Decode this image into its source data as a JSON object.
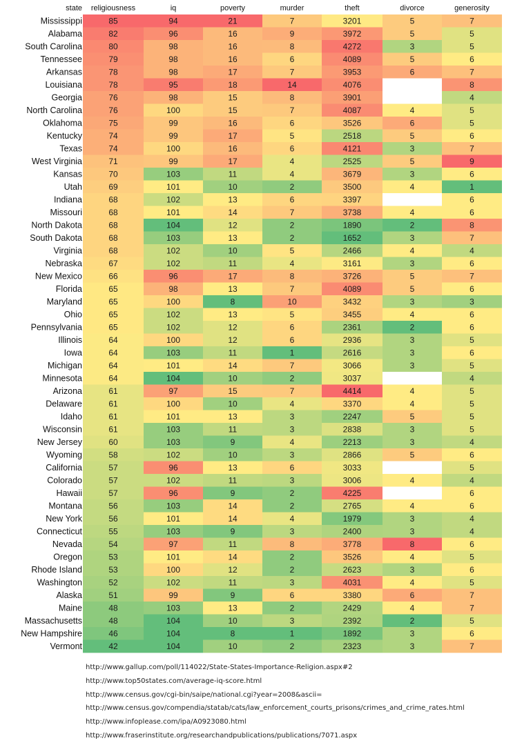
{
  "chart_data": {
    "type": "heatmap",
    "title": "",
    "state_label": "state",
    "columns": [
      {
        "key": "religiousness",
        "label": "religiousness",
        "higher_is_worse": true
      },
      {
        "key": "iq",
        "label": "iq",
        "higher_is_worse": false
      },
      {
        "key": "poverty",
        "label": "poverty",
        "higher_is_worse": true
      },
      {
        "key": "murder",
        "label": "murder",
        "higher_is_worse": true
      },
      {
        "key": "theft",
        "label": "theft",
        "higher_is_worse": true
      },
      {
        "key": "divorce",
        "label": "divorce",
        "higher_is_worse": true
      },
      {
        "key": "generosity",
        "label": "generosity",
        "higher_is_worse": true
      }
    ],
    "color_scale": {
      "good": "#63be7b",
      "mid": "#ffeb84",
      "bad": "#f8696b",
      "missing": "#ffffff"
    },
    "rows": [
      {
        "state": "Mississippi",
        "values": [
          85,
          94,
          21,
          7,
          3201,
          5,
          7
        ]
      },
      {
        "state": "Alabama",
        "values": [
          82,
          96,
          16,
          9,
          3972,
          5,
          5
        ]
      },
      {
        "state": "South Carolina",
        "values": [
          80,
          98,
          16,
          8,
          4272,
          3,
          5
        ]
      },
      {
        "state": "Tennessee",
        "values": [
          79,
          98,
          16,
          6,
          4089,
          5,
          6
        ]
      },
      {
        "state": "Arkansas",
        "values": [
          78,
          98,
          17,
          7,
          3953,
          6,
          7
        ]
      },
      {
        "state": "Louisiana",
        "values": [
          78,
          95,
          18,
          14,
          4076,
          null,
          8
        ]
      },
      {
        "state": "Georgia",
        "values": [
          76,
          98,
          15,
          8,
          3901,
          null,
          4
        ]
      },
      {
        "state": "North Carolina",
        "values": [
          76,
          100,
          15,
          7,
          4087,
          4,
          5
        ]
      },
      {
        "state": "Oklahoma",
        "values": [
          75,
          99,
          16,
          6,
          3526,
          6,
          5
        ]
      },
      {
        "state": "Kentucky",
        "values": [
          74,
          99,
          17,
          5,
          2518,
          5,
          6
        ]
      },
      {
        "state": "Texas",
        "values": [
          74,
          100,
          16,
          6,
          4121,
          3,
          7
        ]
      },
      {
        "state": "West Virginia",
        "values": [
          71,
          99,
          17,
          4,
          2525,
          5,
          9
        ]
      },
      {
        "state": "Kansas",
        "values": [
          70,
          103,
          11,
          4,
          3679,
          3,
          6
        ]
      },
      {
        "state": "Utah",
        "values": [
          69,
          101,
          10,
          2,
          3500,
          4,
          1
        ]
      },
      {
        "state": "Indiana",
        "values": [
          68,
          102,
          13,
          6,
          3397,
          null,
          6
        ]
      },
      {
        "state": "Missouri",
        "values": [
          68,
          101,
          14,
          7,
          3738,
          4,
          6
        ]
      },
      {
        "state": "North Dakota",
        "values": [
          68,
          104,
          12,
          2,
          1890,
          2,
          8
        ]
      },
      {
        "state": "South Dakota",
        "values": [
          68,
          103,
          13,
          2,
          1652,
          3,
          7
        ]
      },
      {
        "state": "Virginia",
        "values": [
          68,
          102,
          10,
          5,
          2466,
          4,
          4
        ]
      },
      {
        "state": "Nebraska",
        "values": [
          67,
          102,
          11,
          4,
          3161,
          3,
          6
        ]
      },
      {
        "state": "New Mexico",
        "values": [
          66,
          96,
          17,
          8,
          3726,
          5,
          7
        ]
      },
      {
        "state": "Florida",
        "values": [
          65,
          98,
          13,
          7,
          4089,
          5,
          6
        ]
      },
      {
        "state": "Maryland",
        "values": [
          65,
          100,
          8,
          10,
          3432,
          3,
          3
        ]
      },
      {
        "state": "Ohio",
        "values": [
          65,
          102,
          13,
          5,
          3455,
          4,
          6
        ]
      },
      {
        "state": "Pennsylvania",
        "values": [
          65,
          102,
          12,
          6,
          2361,
          2,
          6
        ]
      },
      {
        "state": "Illinois",
        "values": [
          64,
          100,
          12,
          6,
          2936,
          3,
          5
        ]
      },
      {
        "state": "Iowa",
        "values": [
          64,
          103,
          11,
          1,
          2616,
          3,
          6
        ]
      },
      {
        "state": "Michigan",
        "values": [
          64,
          101,
          14,
          7,
          3066,
          3,
          5
        ]
      },
      {
        "state": "Minnesota",
        "values": [
          64,
          104,
          10,
          2,
          3037,
          null,
          4
        ]
      },
      {
        "state": "Arizona",
        "values": [
          61,
          97,
          15,
          7,
          4414,
          4,
          5
        ]
      },
      {
        "state": "Delaware",
        "values": [
          61,
          100,
          10,
          4,
          3370,
          4,
          5
        ]
      },
      {
        "state": "Idaho",
        "values": [
          61,
          101,
          13,
          3,
          2247,
          5,
          5
        ]
      },
      {
        "state": "Wisconsin",
        "values": [
          61,
          103,
          11,
          3,
          2838,
          3,
          5
        ]
      },
      {
        "state": "New Jersey",
        "values": [
          60,
          103,
          9,
          4,
          2213,
          3,
          4
        ]
      },
      {
        "state": "Wyoming",
        "values": [
          58,
          102,
          10,
          3,
          2866,
          5,
          6
        ]
      },
      {
        "state": "California",
        "values": [
          57,
          96,
          13,
          6,
          3033,
          null,
          5
        ]
      },
      {
        "state": "Colorado",
        "values": [
          57,
          102,
          11,
          3,
          3006,
          4,
          4
        ]
      },
      {
        "state": "Hawaii",
        "values": [
          57,
          96,
          9,
          2,
          4225,
          null,
          6
        ]
      },
      {
        "state": "Montana",
        "values": [
          56,
          103,
          14,
          2,
          2765,
          4,
          6
        ]
      },
      {
        "state": "New York",
        "values": [
          56,
          101,
          14,
          4,
          1979,
          3,
          4
        ]
      },
      {
        "state": "Connecticut",
        "values": [
          55,
          103,
          9,
          3,
          2400,
          3,
          4
        ]
      },
      {
        "state": "Nevada",
        "values": [
          54,
          97,
          11,
          8,
          3778,
          8,
          6
        ]
      },
      {
        "state": "Oregon",
        "values": [
          53,
          101,
          14,
          2,
          3526,
          4,
          5
        ]
      },
      {
        "state": "Rhode Island",
        "values": [
          53,
          100,
          12,
          2,
          2623,
          3,
          6
        ]
      },
      {
        "state": "Washington",
        "values": [
          52,
          102,
          11,
          3,
          4031,
          4,
          5
        ]
      },
      {
        "state": "Alaska",
        "values": [
          51,
          99,
          9,
          6,
          3380,
          6,
          7
        ]
      },
      {
        "state": "Maine",
        "values": [
          48,
          103,
          13,
          2,
          2429,
          4,
          7
        ]
      },
      {
        "state": "Massachusetts",
        "values": [
          48,
          104,
          10,
          3,
          2392,
          2,
          5
        ]
      },
      {
        "state": "New Hampshire",
        "values": [
          46,
          104,
          8,
          1,
          1892,
          3,
          6
        ]
      },
      {
        "state": "Vermont",
        "values": [
          42,
          104,
          10,
          2,
          2323,
          3,
          7
        ]
      }
    ]
  },
  "sources": [
    "http://www.gallup.com/poll/114022/State-States-Importance-Religion.aspx#2",
    "http://www.top50states.com/average-iq-score.html",
    "http://www.census.gov/cgi-bin/saipe/national.cgi?year=2008&ascii=",
    "http://www.census.gov/compendia/statab/cats/law_enforcement_courts_prisons/crimes_and_crime_rates.html",
    "http://www.infoplease.com/ipa/A0923080.html",
    "http://www.fraserinstitute.org/researchandpublications/publications/7071.aspx"
  ]
}
